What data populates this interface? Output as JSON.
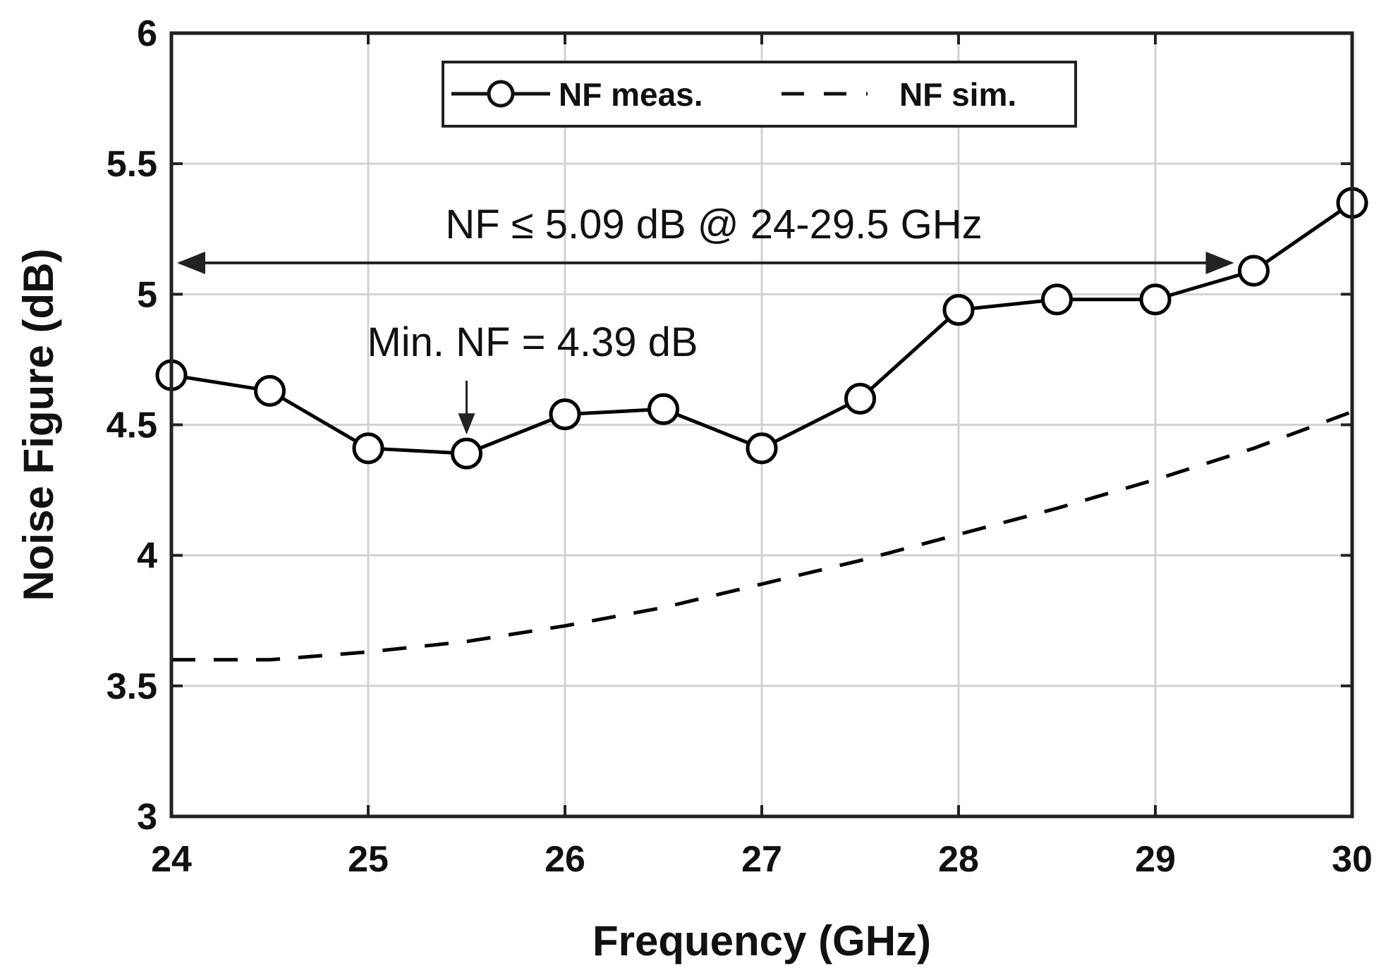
{
  "chart_data": {
    "type": "line",
    "title": "",
    "xlabel": "Frequency (GHz)",
    "ylabel": "Noise Figure (dB)",
    "xlim": [
      24,
      30
    ],
    "ylim": [
      3,
      6
    ],
    "grid": true,
    "xticks": [
      24,
      25,
      26,
      27,
      28,
      29,
      30
    ],
    "yticks": [
      3,
      3.5,
      4,
      4.5,
      5,
      5.5,
      6
    ],
    "xtick_labels": [
      "24",
      "25",
      "26",
      "27",
      "28",
      "29",
      "30"
    ],
    "ytick_labels": [
      "3",
      "3.5",
      "4",
      "4.5",
      "5",
      "5.5",
      "6"
    ],
    "legend_position": "top-center",
    "series": [
      {
        "name": "NF meas.",
        "style": "solid-circle-markers",
        "color": "#000000",
        "x": [
          24,
          24.5,
          25,
          25.5,
          26,
          26.5,
          27,
          27.5,
          28,
          28.5,
          29,
          29.5,
          30
        ],
        "y": [
          4.69,
          4.63,
          4.41,
          4.39,
          4.54,
          4.56,
          4.41,
          4.6,
          4.94,
          4.98,
          4.98,
          5.09,
          5.35
        ]
      },
      {
        "name": "NF sim.",
        "style": "dashed",
        "color": "#000000",
        "x": [
          24,
          24.5,
          25,
          25.5,
          26,
          26.5,
          27,
          27.5,
          28,
          28.5,
          29,
          29.5,
          30
        ],
        "y": [
          3.6,
          3.6,
          3.63,
          3.67,
          3.73,
          3.8,
          3.89,
          3.98,
          4.08,
          4.18,
          4.29,
          4.41,
          4.55
        ]
      }
    ],
    "annotations": [
      {
        "name": "range",
        "text": "NF ≤ 5.09 dB @ 24-29.5 GHz",
        "x_from": 24,
        "x_to": 29.5,
        "y": 5.12
      },
      {
        "name": "min",
        "text": "Min. NF = 4.39 dB",
        "x": 25.5,
        "y": 4.39
      }
    ]
  }
}
